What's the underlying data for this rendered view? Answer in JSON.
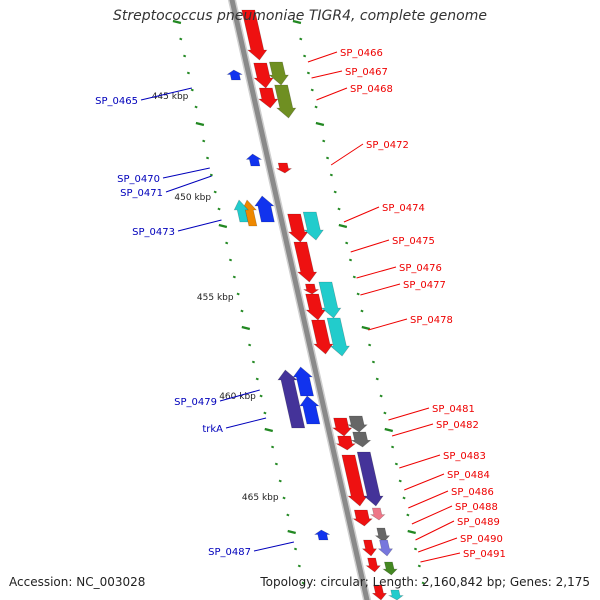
{
  "title": "Streptococcus pneumoniae TIGR4, complete genome",
  "footer": {
    "accession": "Accession: NC_003028",
    "summary": "Topology: circular; Length: 2,160,842 bp; Genes: 2,175"
  },
  "colors": {
    "forward_label": "#ee0000",
    "reverse_label": "#0000bb",
    "backbone": "#8a8a8a",
    "tick": "#228822",
    "red": "#ee1111",
    "olive": "#6f8f22",
    "cyan": "#22cccc",
    "orange": "#ee8800",
    "blue": "#1133ee",
    "purple": "#443399",
    "gray": "#666666",
    "pink": "#ee7788",
    "lavender": "#7777dd",
    "green": "#448822"
  },
  "scale_labels": [
    "445 kbp",
    "450 kbp",
    "455 kbp",
    "460 kbp",
    "465 kbp"
  ],
  "forward_labels": [
    "SP_0466",
    "SP_0467",
    "SP_0468",
    "SP_0472",
    "SP_0474",
    "SP_0475",
    "SP_0476",
    "SP_0477",
    "SP_0478",
    "SP_0481",
    "SP_0482",
    "SP_0483",
    "SP_0484",
    "SP_0486",
    "SP_0488",
    "SP_0489",
    "SP_0490",
    "SP_0491"
  ],
  "reverse_labels": [
    "SP_0465",
    "SP_0470",
    "SP_0471",
    "SP_0473",
    "SP_0479",
    "trkA",
    "SP_0487"
  ]
}
